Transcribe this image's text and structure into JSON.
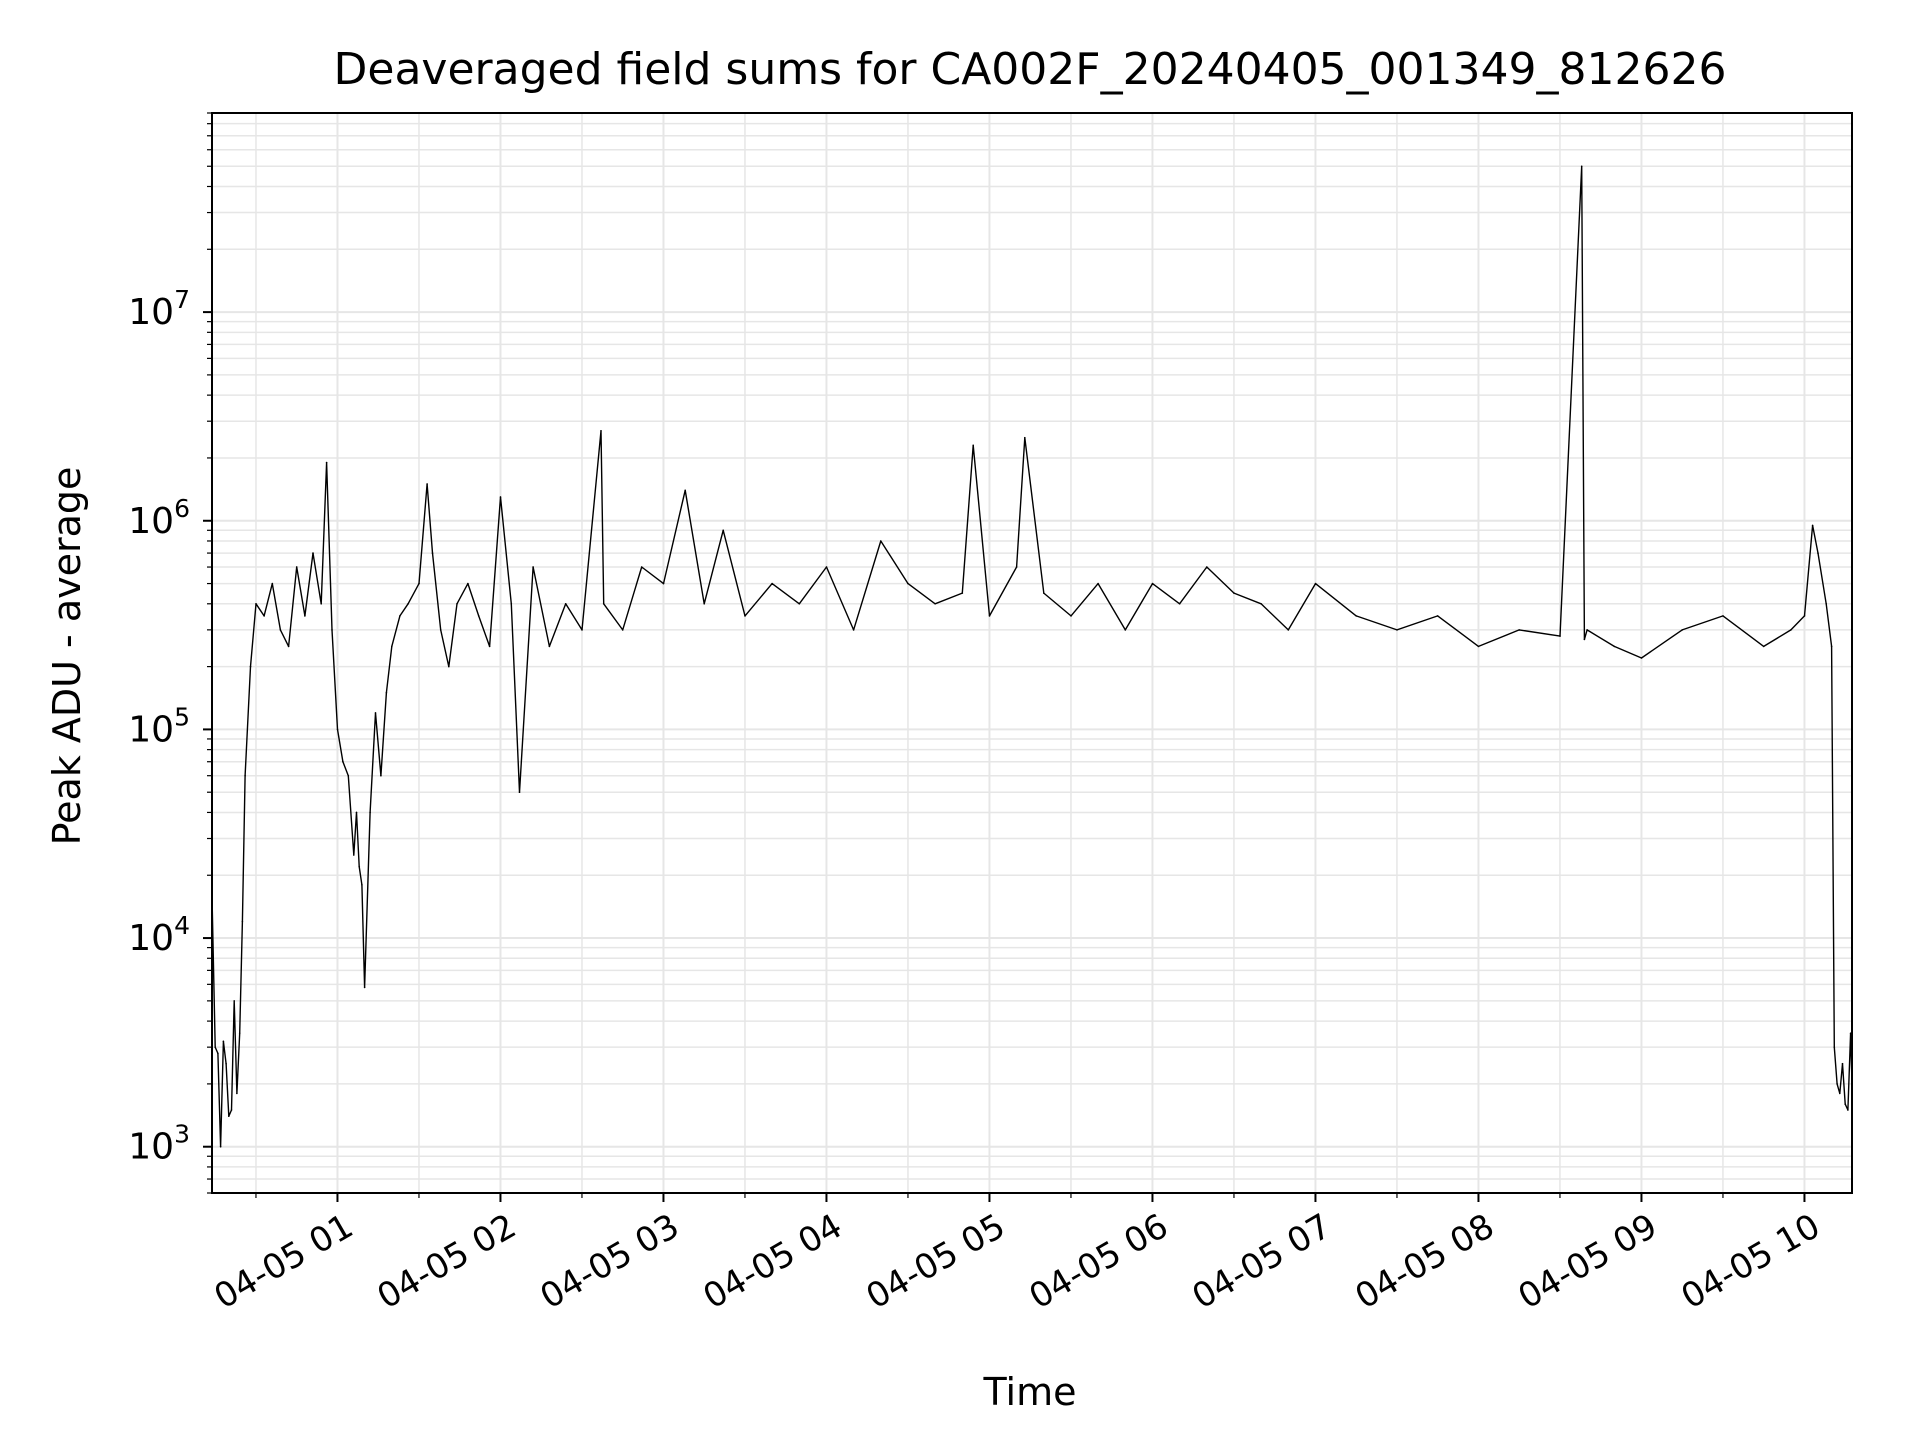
{
  "chart_data": {
    "type": "line",
    "title": "Deaveraged field sums for CA002F_20240405_001349_812626",
    "xlabel": "Time",
    "ylabel": "Peak ADU - average",
    "yscale": "log",
    "grid": true,
    "line_color": "#000000",
    "grid_color": "#e6e6e6",
    "ylim": [
      600,
      90000000
    ],
    "xlim": [
      "2024-04-05 00:13:49",
      "2024-04-05 10:17:30"
    ],
    "x_ticks": [
      {
        "value": "2024-04-05 01:00",
        "label": "04-05 01"
      },
      {
        "value": "2024-04-05 02:00",
        "label": "04-05 02"
      },
      {
        "value": "2024-04-05 03:00",
        "label": "04-05 03"
      },
      {
        "value": "2024-04-05 04:00",
        "label": "04-05 04"
      },
      {
        "value": "2024-04-05 05:00",
        "label": "04-05 05"
      },
      {
        "value": "2024-04-05 06:00",
        "label": "04-05 06"
      },
      {
        "value": "2024-04-05 07:00",
        "label": "04-05 07"
      },
      {
        "value": "2024-04-05 08:00",
        "label": "04-05 08"
      },
      {
        "value": "2024-04-05 09:00",
        "label": "04-05 09"
      },
      {
        "value": "2024-04-05 10:00",
        "label": "04-05 10"
      }
    ],
    "y_ticks": [
      {
        "value": 1000,
        "base": "10",
        "exp": "3"
      },
      {
        "value": 10000,
        "base": "10",
        "exp": "4"
      },
      {
        "value": 100000,
        "base": "10",
        "exp": "5"
      },
      {
        "value": 1000000,
        "base": "10",
        "exp": "6"
      },
      {
        "value": 10000000,
        "base": "10",
        "exp": "7"
      }
    ],
    "series": [
      {
        "x": [
          "2024-04-05 00:13:49",
          "2024-04-05 00:15:00",
          "2024-04-05 00:16:00",
          "2024-04-05 00:17:00",
          "2024-04-05 00:18:00",
          "2024-04-05 00:19:00",
          "2024-04-05 00:20:00",
          "2024-04-05 00:21:00",
          "2024-04-05 00:22:00",
          "2024-04-05 00:23:00",
          "2024-04-05 00:24:00",
          "2024-04-05 00:25:00",
          "2024-04-05 00:26:00",
          "2024-04-05 00:28:00",
          "2024-04-05 00:30:00",
          "2024-04-05 00:33:00",
          "2024-04-05 00:36:00",
          "2024-04-05 00:39:00",
          "2024-04-05 00:42:00",
          "2024-04-05 00:45:00",
          "2024-04-05 00:48:00",
          "2024-04-05 00:51:00",
          "2024-04-05 00:54:00",
          "2024-04-05 00:56:00",
          "2024-04-05 00:58:00",
          "2024-04-05 01:00:00",
          "2024-04-05 01:02:00",
          "2024-04-05 01:04:00",
          "2024-04-05 01:06:00",
          "2024-04-05 01:07:00",
          "2024-04-05 01:08:00",
          "2024-04-05 01:09:00",
          "2024-04-05 01:10:00",
          "2024-04-05 01:12:00",
          "2024-04-05 01:14:00",
          "2024-04-05 01:16:00",
          "2024-04-05 01:18:00",
          "2024-04-05 01:20:00",
          "2024-04-05 01:23:00",
          "2024-04-05 01:26:00",
          "2024-04-05 01:30:00",
          "2024-04-05 01:33:00",
          "2024-04-05 01:35:00",
          "2024-04-05 01:38:00",
          "2024-04-05 01:41:00",
          "2024-04-05 01:44:00",
          "2024-04-05 01:48:00",
          "2024-04-05 01:52:00",
          "2024-04-05 01:56:00",
          "2024-04-05 02:00:00",
          "2024-04-05 02:04:00",
          "2024-04-05 02:07:00",
          "2024-04-05 02:12:00",
          "2024-04-05 02:18:00",
          "2024-04-05 02:24:00",
          "2024-04-05 02:30:00",
          "2024-04-05 02:37:00",
          "2024-04-05 02:38:00",
          "2024-04-05 02:45:00",
          "2024-04-05 02:52:00",
          "2024-04-05 03:00:00",
          "2024-04-05 03:08:00",
          "2024-04-05 03:15:00",
          "2024-04-05 03:22:00",
          "2024-04-05 03:30:00",
          "2024-04-05 03:40:00",
          "2024-04-05 03:50:00",
          "2024-04-05 04:00:00",
          "2024-04-05 04:10:00",
          "2024-04-05 04:20:00",
          "2024-04-05 04:30:00",
          "2024-04-05 04:40:00",
          "2024-04-05 04:50:00",
          "2024-04-05 04:54:00",
          "2024-04-05 05:00:00",
          "2024-04-05 05:10:00",
          "2024-04-05 05:13:00",
          "2024-04-05 05:20:00",
          "2024-04-05 05:30:00",
          "2024-04-05 05:40:00",
          "2024-04-05 05:50:00",
          "2024-04-05 06:00:00",
          "2024-04-05 06:10:00",
          "2024-04-05 06:20:00",
          "2024-04-05 06:30:00",
          "2024-04-05 06:40:00",
          "2024-04-05 06:50:00",
          "2024-04-05 07:00:00",
          "2024-04-05 07:15:00",
          "2024-04-05 07:30:00",
          "2024-04-05 07:45:00",
          "2024-04-05 08:00:00",
          "2024-04-05 08:15:00",
          "2024-04-05 08:30:00",
          "2024-04-05 08:38:00",
          "2024-04-05 08:39:00",
          "2024-04-05 08:40:00",
          "2024-04-05 08:50:00",
          "2024-04-05 09:00:00",
          "2024-04-05 09:15:00",
          "2024-04-05 09:30:00",
          "2024-04-05 09:45:00",
          "2024-04-05 09:55:00",
          "2024-04-05 10:00:00",
          "2024-04-05 10:03:00",
          "2024-04-05 10:05:00",
          "2024-04-05 10:08:00",
          "2024-04-05 10:10:00",
          "2024-04-05 10:11:00",
          "2024-04-05 10:12:00",
          "2024-04-05 10:13:00",
          "2024-04-05 10:14:00",
          "2024-04-05 10:15:00",
          "2024-04-05 10:16:00",
          "2024-04-05 10:17:00",
          "2024-04-05 10:17:30"
        ],
        "y": [
          16000,
          3000,
          2800,
          1000,
          3200,
          2500,
          1400,
          1500,
          5000,
          1800,
          3500,
          12000,
          60000,
          200000,
          400000,
          350000,
          500000,
          300000,
          250000,
          600000,
          350000,
          700000,
          400000,
          1900000,
          300000,
          100000,
          70000,
          60000,
          25000,
          40000,
          22000,
          18000,
          5800,
          40000,
          120000,
          60000,
          150000,
          250000,
          350000,
          400000,
          500000,
          1500000,
          700000,
          300000,
          200000,
          400000,
          500000,
          350000,
          250000,
          1300000,
          400000,
          50000,
          600000,
          250000,
          400000,
          300000,
          2700000,
          400000,
          300000,
          600000,
          500000,
          1400000,
          400000,
          900000,
          350000,
          500000,
          400000,
          600000,
          300000,
          800000,
          500000,
          400000,
          450000,
          2300000,
          350000,
          600000,
          2500000,
          450000,
          350000,
          500000,
          300000,
          500000,
          400000,
          600000,
          450000,
          400000,
          300000,
          500000,
          350000,
          300000,
          350000,
          250000,
          300000,
          280000,
          50000000,
          270000,
          300000,
          250000,
          220000,
          300000,
          350000,
          250000,
          300000,
          350000,
          950000,
          700000,
          400000,
          250000,
          3000,
          2000,
          1800,
          2500,
          1600,
          1500,
          3500,
          2000
        ]
      }
    ]
  }
}
